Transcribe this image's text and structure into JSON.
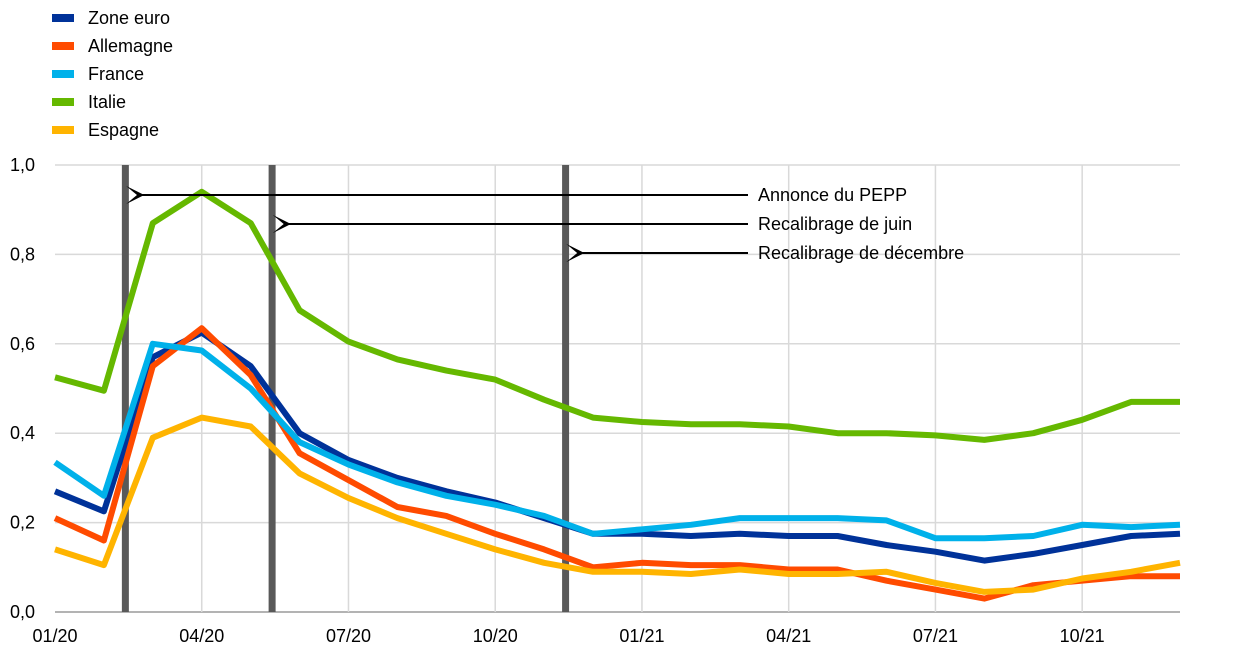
{
  "chart_data": {
    "type": "line",
    "title": "",
    "xlabel": "",
    "ylabel": "",
    "ylim": [
      0,
      1.0
    ],
    "yticks": [
      "0,0",
      "0,2",
      "0,4",
      "0,6",
      "0,8",
      "1,0"
    ],
    "xticks": [
      "01/20",
      "04/20",
      "07/20",
      "10/20",
      "01/21",
      "04/21",
      "07/21",
      "10/21"
    ],
    "x": [
      "01/20",
      "02/20",
      "03/20",
      "04/20",
      "05/20",
      "06/20",
      "07/20",
      "08/20",
      "09/20",
      "10/20",
      "11/20",
      "12/20",
      "01/21",
      "02/21",
      "03/21",
      "04/21",
      "05/21",
      "06/21",
      "07/21",
      "08/21",
      "09/21",
      "10/21",
      "11/21",
      "12/21"
    ],
    "grid": "horizontal and vertical",
    "legend_position": "top-left",
    "series": [
      {
        "name": "Zone euro",
        "color": "#003299",
        "values": [
          0.27,
          0.225,
          0.57,
          0.625,
          0.55,
          0.4,
          0.34,
          0.3,
          0.27,
          0.245,
          0.21,
          0.175,
          0.175,
          0.17,
          0.175,
          0.17,
          0.17,
          0.15,
          0.135,
          0.115,
          0.13,
          0.15,
          0.17,
          0.175
        ]
      },
      {
        "name": "Allemagne",
        "color": "#ff4b00",
        "values": [
          0.21,
          0.16,
          0.55,
          0.635,
          0.53,
          0.355,
          0.295,
          0.235,
          0.215,
          0.175,
          0.14,
          0.1,
          0.11,
          0.105,
          0.105,
          0.095,
          0.095,
          0.07,
          0.05,
          0.03,
          0.06,
          0.07,
          0.08,
          0.08
        ]
      },
      {
        "name": "France",
        "color": "#00b1ea",
        "values": [
          0.335,
          0.26,
          0.6,
          0.585,
          0.5,
          0.38,
          0.33,
          0.29,
          0.26,
          0.24,
          0.215,
          0.175,
          0.185,
          0.195,
          0.21,
          0.21,
          0.21,
          0.205,
          0.165,
          0.165,
          0.17,
          0.195,
          0.19,
          0.195
        ]
      },
      {
        "name": "Italie",
        "color": "#65b800",
        "values": [
          0.525,
          0.495,
          0.87,
          0.94,
          0.87,
          0.675,
          0.605,
          0.565,
          0.54,
          0.52,
          0.475,
          0.435,
          0.425,
          0.42,
          0.42,
          0.415,
          0.4,
          0.4,
          0.395,
          0.385,
          0.4,
          0.43,
          0.47,
          0.47
        ]
      },
      {
        "name": "Espagne",
        "color": "#ffb400",
        "values": [
          0.14,
          0.105,
          0.39,
          0.435,
          0.415,
          0.31,
          0.255,
          0.21,
          0.175,
          0.14,
          0.11,
          0.09,
          0.09,
          0.085,
          0.095,
          0.085,
          0.085,
          0.09,
          0.065,
          0.045,
          0.05,
          0.075,
          0.09,
          0.11
        ]
      }
    ],
    "vertical_markers": [
      {
        "x": 1.5,
        "label": "Annonce du PEPP"
      },
      {
        "x": 4.5,
        "label": "Recalibrage de juin"
      },
      {
        "x": 10.5,
        "label": "Recalibrage de décembre"
      }
    ],
    "annotation_labels": [
      "Annonce du PEPP",
      "Recalibrage de juin",
      "Recalibrage de décembre"
    ]
  }
}
